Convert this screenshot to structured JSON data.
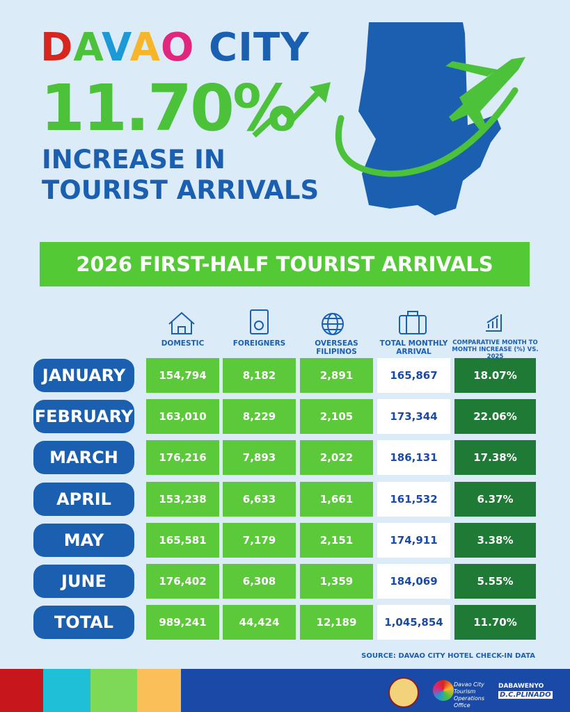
{
  "header": {
    "title": [
      {
        "text": "D",
        "color": "#d7261e"
      },
      {
        "text": "A",
        "color": "#4cc13a"
      },
      {
        "text": "V",
        "color": "#1d9ad6"
      },
      {
        "text": "A",
        "color": "#f7b52b"
      },
      {
        "text": "O",
        "color": "#e0267d"
      },
      {
        "text": " CITY",
        "color": "#1a5fb0"
      }
    ],
    "percent": "11.70%",
    "subtitle": [
      "INCREASE IN",
      "TOURIST ARRIVALS"
    ]
  },
  "banner": "2026 FIRST-HALF TOURIST ARRIVALS",
  "table": {
    "columns": [
      "DOMESTIC",
      "FOREIGNERS",
      "OVERSEAS FILIPINOS",
      "TOTAL MONTHLY ARRIVAL",
      "COMPARATIVE MONTH TO MONTH INCREASE (%) VS. 2025"
    ],
    "rows": [
      [
        "JANUARY",
        "154,794",
        "8,182",
        "2,891",
        "165,867",
        "18.07%"
      ],
      [
        "FEBRUARY",
        "163,010",
        "8,229",
        "2,105",
        "173,344",
        "22.06%"
      ],
      [
        "MARCH",
        "176,216",
        "7,893",
        "2,022",
        "186,131",
        "17.38%"
      ],
      [
        "APRIL",
        "153,238",
        "6,633",
        "1,661",
        "161,532",
        "6.37%"
      ],
      [
        "MAY",
        "165,581",
        "7,179",
        "2,151",
        "174,911",
        "3.38%"
      ],
      [
        "JUNE",
        "176,402",
        "6,308",
        "1,359",
        "184,069",
        "5.55%"
      ],
      [
        "TOTAL",
        "989,241",
        "44,424",
        "12,189",
        "1,045,854",
        "11.70%"
      ]
    ]
  },
  "source": "SOURCE: DAVAO CITY HOTEL CHECK-IN DATA",
  "footer": {
    "office": "Davao City Tourism Operations Office",
    "brand_top": "DABAWENYO",
    "brand_bottom": "D.C.PLINADO"
  }
}
